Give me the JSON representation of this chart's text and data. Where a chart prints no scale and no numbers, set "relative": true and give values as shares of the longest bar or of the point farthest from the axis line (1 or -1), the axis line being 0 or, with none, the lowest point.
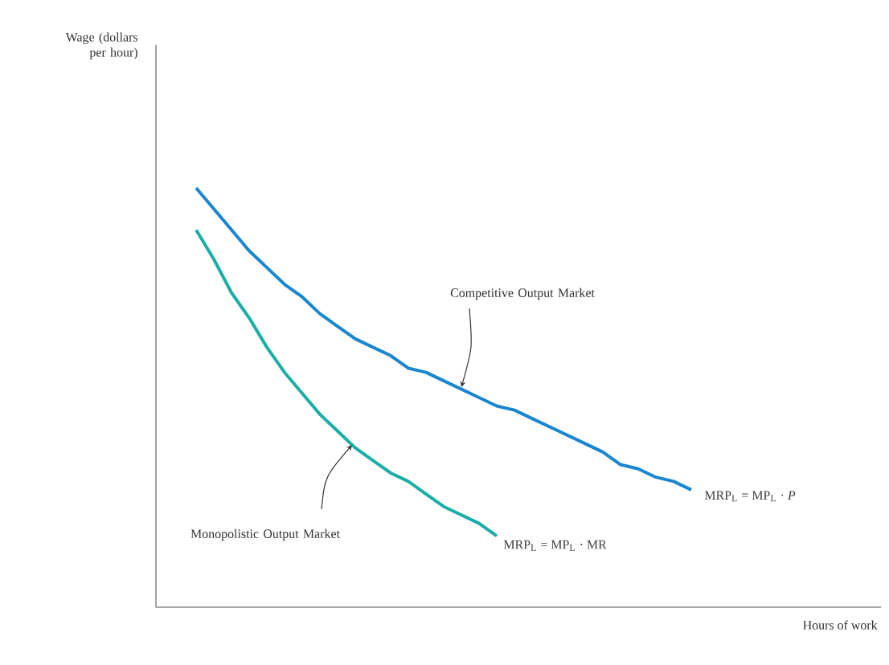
{
  "chart_data": {
    "type": "line",
    "relative": true,
    "categories": [
      null,
      null,
      null,
      null,
      null,
      null,
      null,
      null,
      null,
      null,
      null,
      null,
      null,
      null,
      null,
      null,
      null,
      null,
      null,
      null,
      null,
      null,
      null,
      null,
      null,
      null,
      null,
      null,
      null
    ],
    "series": [
      {
        "name": "MRP$_{L}$ = MP$_{L}$ · *P*",
        "color": "#1a86d0",
        "values": [
          1,
          0.95,
          0.9,
          0.85,
          0.81,
          0.77,
          0.74,
          0.7,
          0.67,
          0.64,
          0.62,
          0.6,
          0.57,
          0.56,
          0.54,
          0.52,
          0.5,
          0.48,
          0.47,
          0.45,
          0.43,
          0.41,
          0.39,
          0.37,
          0.34,
          0.33,
          0.31,
          0.3,
          0.28
        ]
      },
      {
        "name": "MRP$_{L}$ = MP$_{L}$ · MR",
        "color": "#1aaea6",
        "values": [
          0.9,
          0.83,
          0.75,
          0.69,
          0.62,
          0.56,
          0.51,
          0.46,
          0.42,
          0.38,
          0.35,
          0.32,
          0.3,
          0.27,
          0.24,
          0.22,
          0.2,
          0.17,
          null,
          null,
          null,
          null,
          null,
          null,
          null,
          null,
          null,
          null,
          null
        ]
      }
    ],
    "annotations": [
      "Wage (dollars per hour)",
      "Competitive Output Market",
      "Monopolistic Output Market",
      "Hours of work"
    ]
  }
}
